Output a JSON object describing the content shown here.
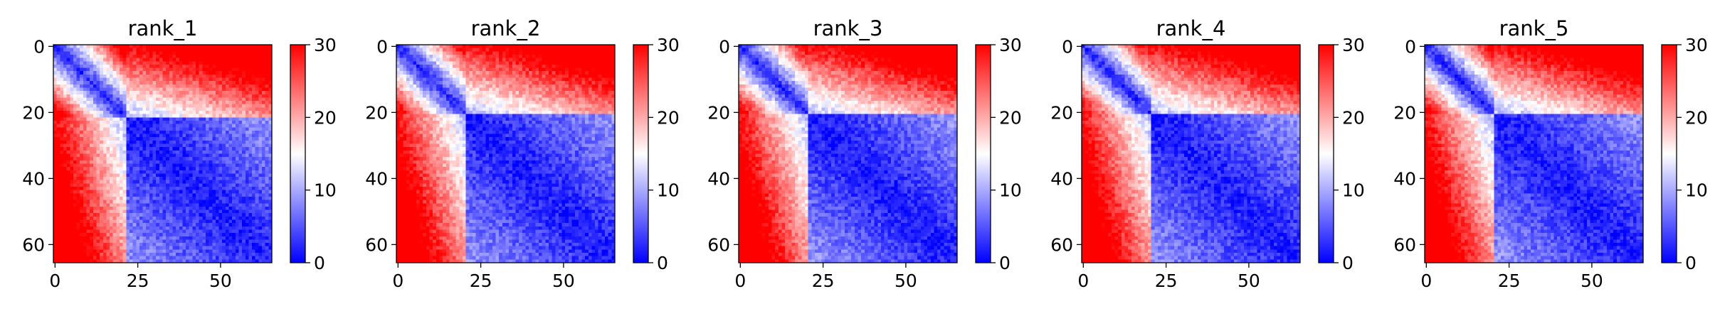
{
  "chart_data": [
    {
      "type": "heatmap",
      "title": "rank_1",
      "matrix_size": 66,
      "x_ticks": [
        0,
        25,
        50
      ],
      "y_ticks": [
        0,
        20,
        40,
        60
      ],
      "colorbar": {
        "min": 0,
        "max": 30,
        "ticks": [
          0,
          10,
          20,
          30
        ],
        "colormap": "bwr"
      },
      "structure": {
        "domain_boundary": 22,
        "seed": 11
      }
    },
    {
      "type": "heatmap",
      "title": "rank_2",
      "matrix_size": 66,
      "x_ticks": [
        0,
        25,
        50
      ],
      "y_ticks": [
        0,
        20,
        40,
        60
      ],
      "colorbar": {
        "min": 0,
        "max": 30,
        "ticks": [
          0,
          10,
          20,
          30
        ],
        "colormap": "bwr"
      },
      "structure": {
        "domain_boundary": 21,
        "seed": 23
      }
    },
    {
      "type": "heatmap",
      "title": "rank_3",
      "matrix_size": 66,
      "x_ticks": [
        0,
        25,
        50
      ],
      "y_ticks": [
        0,
        20,
        40,
        60
      ],
      "colorbar": {
        "min": 0,
        "max": 30,
        "ticks": [
          0,
          10,
          20,
          30
        ],
        "colormap": "bwr"
      },
      "structure": {
        "domain_boundary": 21,
        "seed": 37
      }
    },
    {
      "type": "heatmap",
      "title": "rank_4",
      "matrix_size": 66,
      "x_ticks": [
        0,
        25,
        50
      ],
      "y_ticks": [
        0,
        20,
        40,
        60
      ],
      "colorbar": {
        "min": 0,
        "max": 30,
        "ticks": [
          0,
          10,
          20,
          30
        ],
        "colormap": "bwr"
      },
      "structure": {
        "domain_boundary": 21,
        "seed": 41
      }
    },
    {
      "type": "heatmap",
      "title": "rank_5",
      "matrix_size": 66,
      "x_ticks": [
        0,
        25,
        50
      ],
      "y_ticks": [
        0,
        20,
        40,
        60
      ],
      "colorbar": {
        "min": 0,
        "max": 30,
        "ticks": [
          0,
          10,
          20,
          30
        ],
        "colormap": "bwr"
      },
      "structure": {
        "domain_boundary": 21,
        "seed": 53
      }
    }
  ],
  "colors": {
    "low": "#0000ff",
    "mid": "#ffffff",
    "high": "#ff0000"
  }
}
